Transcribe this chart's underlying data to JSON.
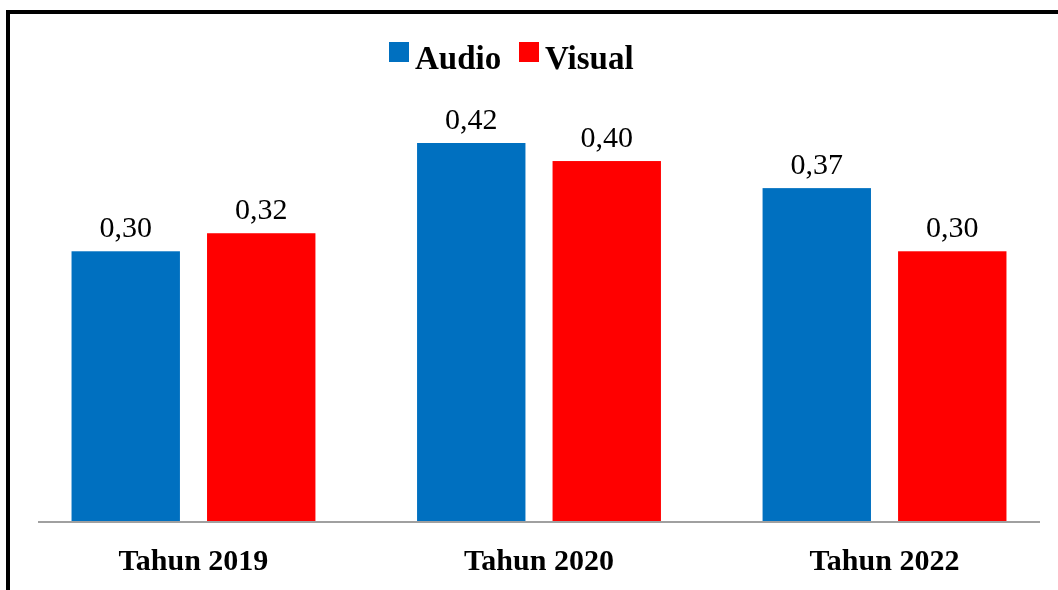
{
  "chart_data": {
    "type": "bar",
    "categories": [
      "Tahun 2019",
      "Tahun 2020",
      "Tahun 2022"
    ],
    "series": [
      {
        "name": "Audio",
        "color": "#0070c0",
        "values": [
          0.3,
          0.42,
          0.37
        ],
        "value_labels": [
          "0,30",
          "0,42",
          "0,37"
        ]
      },
      {
        "name": "Visual",
        "color": "#ff0000",
        "values": [
          0.32,
          0.4,
          0.3
        ],
        "value_labels": [
          "0,32",
          "0,40",
          "0,30"
        ]
      }
    ],
    "legend": "top"
  }
}
